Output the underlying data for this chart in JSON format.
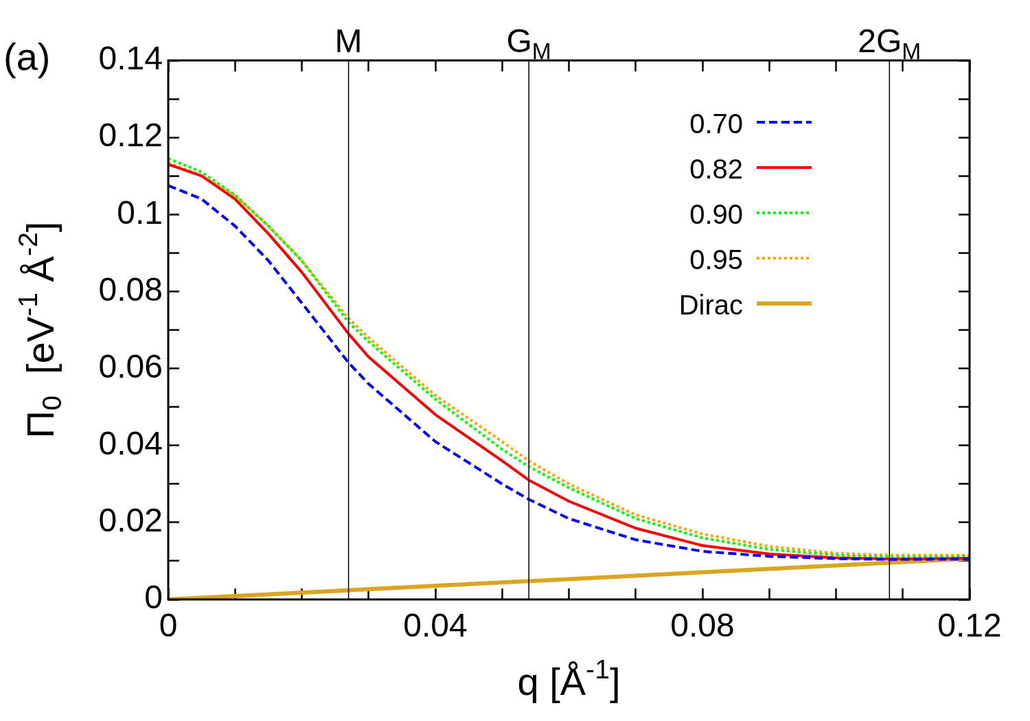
{
  "chart_data": {
    "type": "line",
    "xlabel": "q [Å$^{-1}$]",
    "ylabel": "Π$_{0}$  [eV$^{-1}$ Å$^{-2}$]",
    "annotations": [
      "(a)"
    ],
    "x": [
      0,
      0.005,
      0.01,
      0.015,
      0.02,
      0.027,
      0.03,
      0.04,
      0.05,
      0.054,
      0.06,
      0.07,
      0.08,
      0.09,
      0.1,
      0.108,
      0.12
    ],
    "series": [
      {
        "name": "0.70",
        "color": "#0000ff",
        "line_style": "dashed",
        "values": [
          0.1075,
          0.104,
          0.097,
          0.088,
          0.077,
          0.0615,
          0.056,
          0.041,
          0.03,
          0.026,
          0.021,
          0.0155,
          0.0125,
          0.0112,
          0.0106,
          0.0104,
          0.0105
        ]
      },
      {
        "name": "0.82",
        "color": "#ff0000",
        "line_style": "solid",
        "values": [
          0.113,
          0.11,
          0.104,
          0.095,
          0.085,
          0.069,
          0.063,
          0.048,
          0.036,
          0.031,
          0.0255,
          0.0185,
          0.014,
          0.0118,
          0.0108,
          0.0105,
          0.0107
        ]
      },
      {
        "name": "0.90",
        "color": "#00ff00",
        "line_style": "dotted",
        "values": [
          0.1145,
          0.111,
          0.105,
          0.097,
          0.088,
          0.072,
          0.067,
          0.052,
          0.039,
          0.0345,
          0.029,
          0.021,
          0.016,
          0.013,
          0.0115,
          0.011,
          0.0112
        ]
      },
      {
        "name": "0.95",
        "color": "#ffa500",
        "line_style": "dotted",
        "values": [
          0.1135,
          0.11,
          0.105,
          0.097,
          0.088,
          0.073,
          0.068,
          0.053,
          0.041,
          0.036,
          0.03,
          0.022,
          0.017,
          0.0138,
          0.012,
          0.0115,
          0.0115
        ]
      },
      {
        "name": "Dirac",
        "color": "#daa520",
        "line_style": "solid",
        "x": [
          0,
          0.12
        ],
        "values": [
          0,
          0.0106
        ]
      }
    ],
    "xlim": [
      0,
      0.12
    ],
    "xticks": [
      0,
      {
        "value": 0.01,
        "label": null
      },
      {
        "value": 0.02,
        "label": null
      },
      {
        "value": 0.03,
        "label": null
      },
      0.04,
      {
        "value": 0.05,
        "label": null
      },
      {
        "value": 0.06,
        "label": null
      },
      {
        "value": 0.07,
        "label": null
      },
      0.08,
      {
        "value": 0.09,
        "label": null
      },
      {
        "value": 0.1,
        "label": null
      },
      {
        "value": 0.11,
        "label": null
      },
      0.12
    ],
    "ylim": [
      0,
      0.14
    ],
    "yticks": [
      0,
      {
        "value": 0.01,
        "label": null
      },
      0.02,
      {
        "value": 0.03,
        "label": null
      },
      0.04,
      {
        "value": 0.05,
        "label": null
      },
      0.06,
      {
        "value": 0.07,
        "label": null
      },
      0.08,
      {
        "value": 0.09,
        "label": null
      },
      {
        "value": 0.1,
        "label": "0.1"
      },
      {
        "value": 0.11,
        "label": null
      },
      0.12,
      {
        "value": 0.13,
        "label": null
      },
      0.14
    ],
    "ref_lines": [
      {
        "axis": "x",
        "value": 0.027,
        "label": "M",
        "color": "#000000"
      },
      {
        "axis": "x",
        "value": 0.054,
        "label": "G$_{M}$",
        "color": "#000000"
      },
      {
        "axis": "x",
        "value": 0.108,
        "label": "2G$_{M}$",
        "color": "#000000"
      }
    ],
    "grid": false,
    "legend": "top right",
    "marker": "none"
  }
}
